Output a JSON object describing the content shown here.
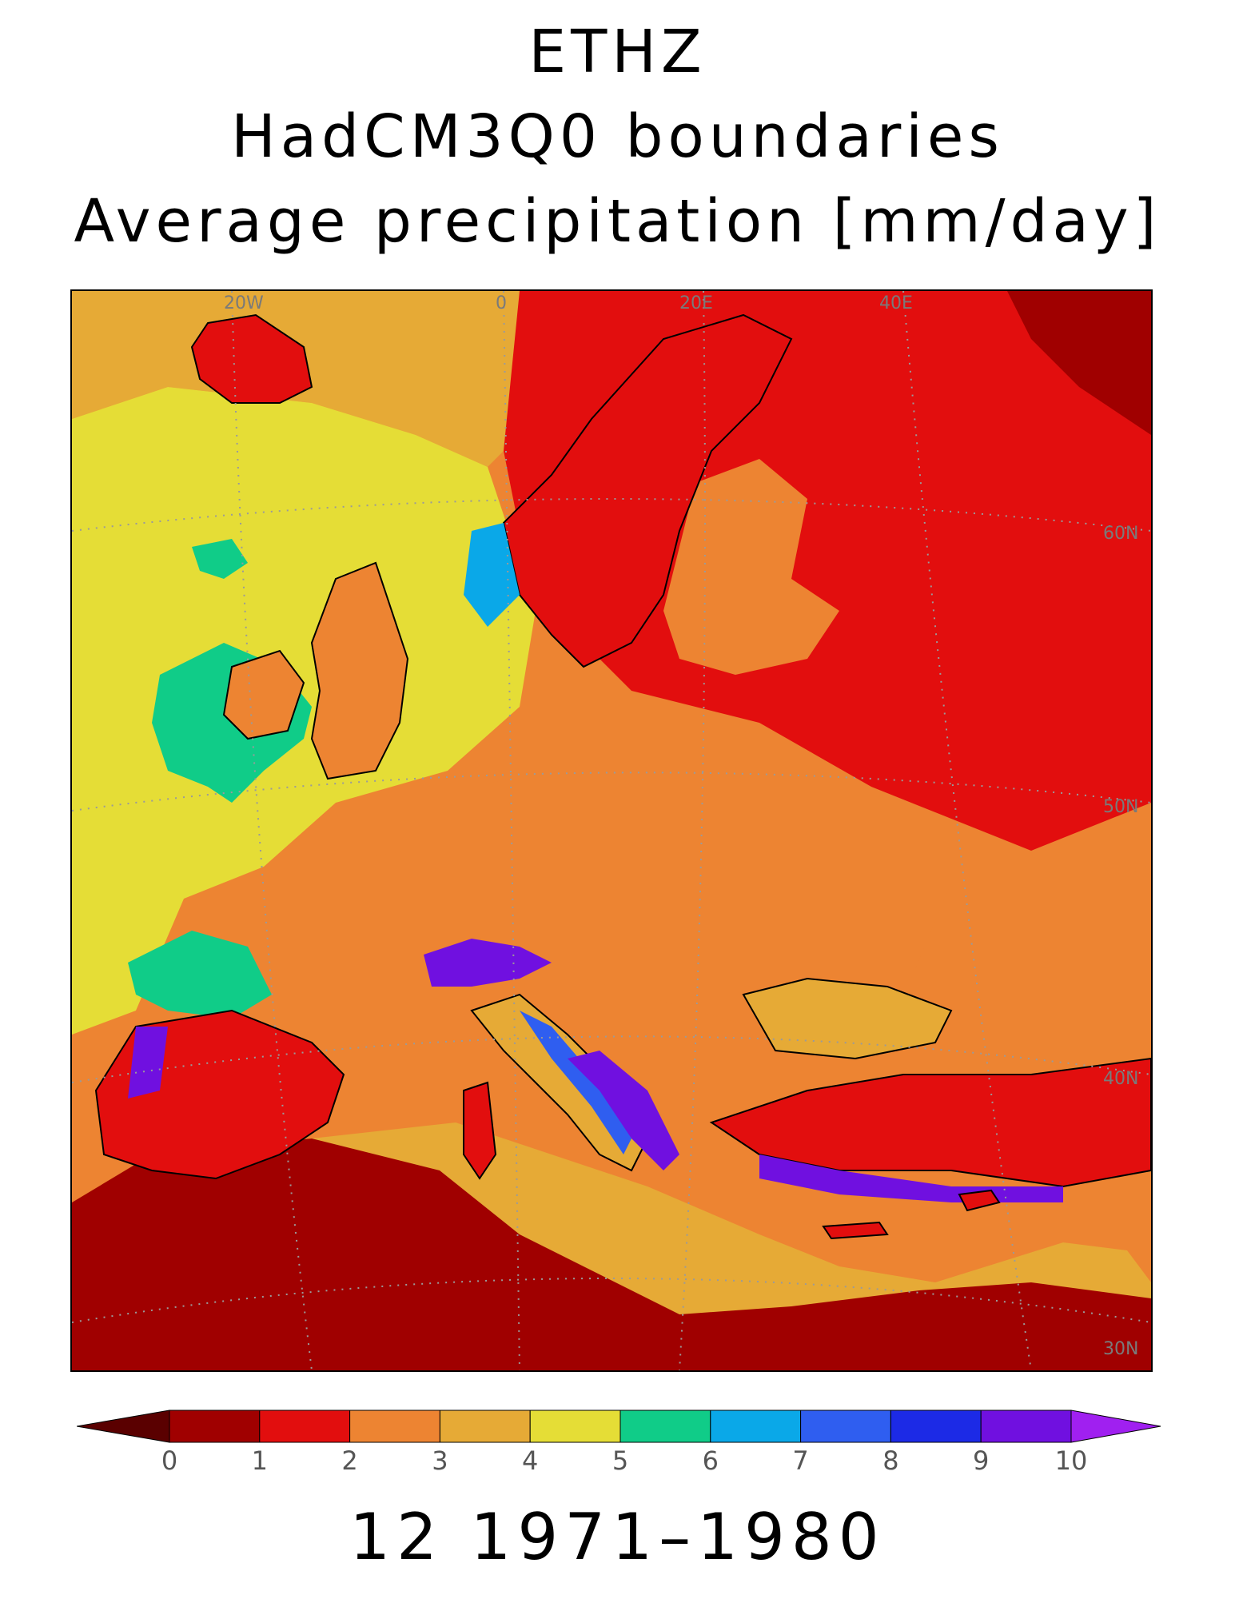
{
  "title": {
    "line1": "ETHZ",
    "line2": "HadCM3Q0 boundaries",
    "line3": "Average precipitation [mm/day]"
  },
  "footer": "12 1971–1980",
  "map": {
    "grid_labels": {
      "lon": [
        "20W",
        "0",
        "20E",
        "40E"
      ],
      "lat": [
        "60N",
        "50N",
        "40N",
        "30N"
      ]
    }
  },
  "colorbar": {
    "ticks": [
      "0",
      "1",
      "2",
      "3",
      "4",
      "5",
      "6",
      "7",
      "8",
      "9",
      "10"
    ],
    "under_color": "#5a0000",
    "over_color": "#a020f0",
    "colors": [
      "#a00000",
      "#e20e0e",
      "#ed8432",
      "#e6aa36",
      "#e5dd36",
      "#10cc88",
      "#0aa8e8",
      "#2f5ef0",
      "#1c2ae6",
      "#7010e0"
    ]
  }
}
